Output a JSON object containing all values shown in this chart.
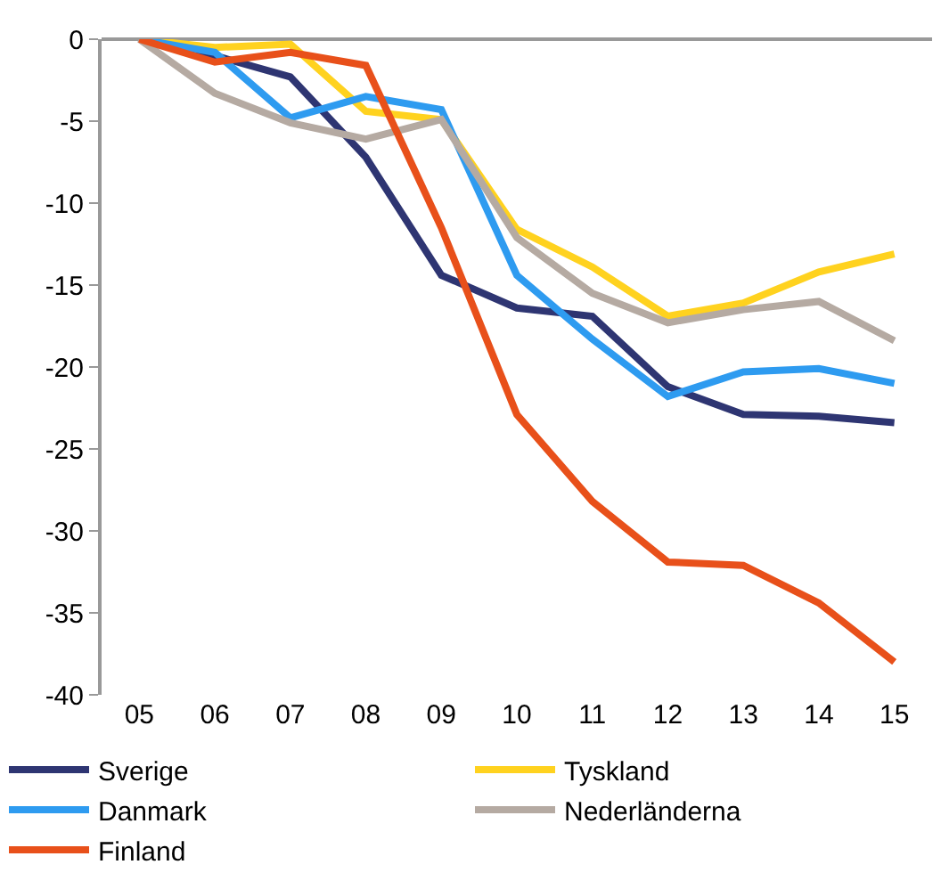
{
  "chart_data": {
    "type": "line",
    "categories": [
      "05",
      "06",
      "07",
      "08",
      "09",
      "10",
      "11",
      "12",
      "13",
      "14",
      "15"
    ],
    "ylim": [
      -40,
      0
    ],
    "yticks": [
      -40,
      -35,
      -30,
      -25,
      -20,
      -15,
      -10,
      -5,
      0
    ],
    "legend": "bottom",
    "marker": "none",
    "line_style": "solid",
    "series": [
      {
        "name": "Sverige",
        "color": "#2e3572",
        "values": [
          0,
          -1,
          -2.3,
          -7.2,
          -14.4,
          -16.4,
          -16.9,
          -21.2,
          -22.9,
          -23.0,
          -23.4
        ]
      },
      {
        "name": "Tyskland",
        "color": "#ffd21f",
        "values": [
          0,
          -0.5,
          -0.3,
          -4.4,
          -4.9,
          -11.6,
          -13.9,
          -16.9,
          -16.1,
          -14.2,
          -13.1
        ]
      },
      {
        "name": "Danmark",
        "color": "#2e9bf0",
        "values": [
          0,
          -0.8,
          -4.8,
          -3.5,
          -4.3,
          -14.4,
          -18.3,
          -21.8,
          -20.3,
          -20.1,
          -21.0
        ]
      },
      {
        "name": "Nederländerna",
        "color": "#b5aaa2",
        "values": [
          0,
          -3.3,
          -5.1,
          -6.1,
          -4.9,
          -12.1,
          -15.5,
          -17.3,
          -16.5,
          -16.0,
          -18.4
        ]
      },
      {
        "name": "Finland",
        "color": "#e8501a",
        "values": [
          0,
          -1.4,
          -0.8,
          -1.6,
          -11.5,
          -22.9,
          -28.2,
          -31.9,
          -32.1,
          -34.4,
          -38.0
        ]
      }
    ]
  }
}
